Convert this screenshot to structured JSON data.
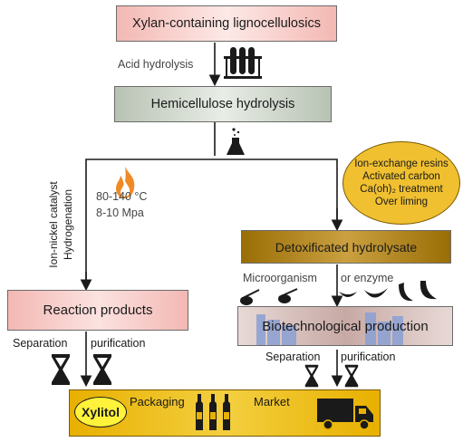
{
  "steps": {
    "feedstock": "Xylan-containing lignocellulosics",
    "acid_hydrolysis": "Acid hydrolysis",
    "hemicellulose": "Hemicellulose hydrolysis",
    "catalyst": "Ion-nickel catalyst",
    "hydrogenation": "Hydrogenation",
    "temperature": "80-140 °C",
    "pressure": "8-10 Mpa",
    "reaction_products": "Reaction products",
    "separation_left": "Separation",
    "purification_left": "purification",
    "detox_methods": [
      "Ion-exchange resins",
      "Activated carbon",
      "Ca(oh)₂ treatment",
      "Over liming"
    ],
    "detox_hydrolysate": "Detoxificated hydrolysate",
    "microorganism": "Microorganism",
    "or_enzyme": "or enzyme",
    "biotech": "Biotechnological production",
    "separation_right": "Separation",
    "purification_right": "purification",
    "xylitol": "Xylitol",
    "packaging": "Packaging",
    "market": "Market"
  },
  "colors": {
    "pink_box": "#f4c7c4",
    "grey_green_box": "#d4dcd0",
    "detox_box": "#b8860b",
    "ellipse": "#f0c030",
    "bottom_bar": "#eab400",
    "arrow": "#1a1a1a",
    "flame": "#f08a24"
  }
}
